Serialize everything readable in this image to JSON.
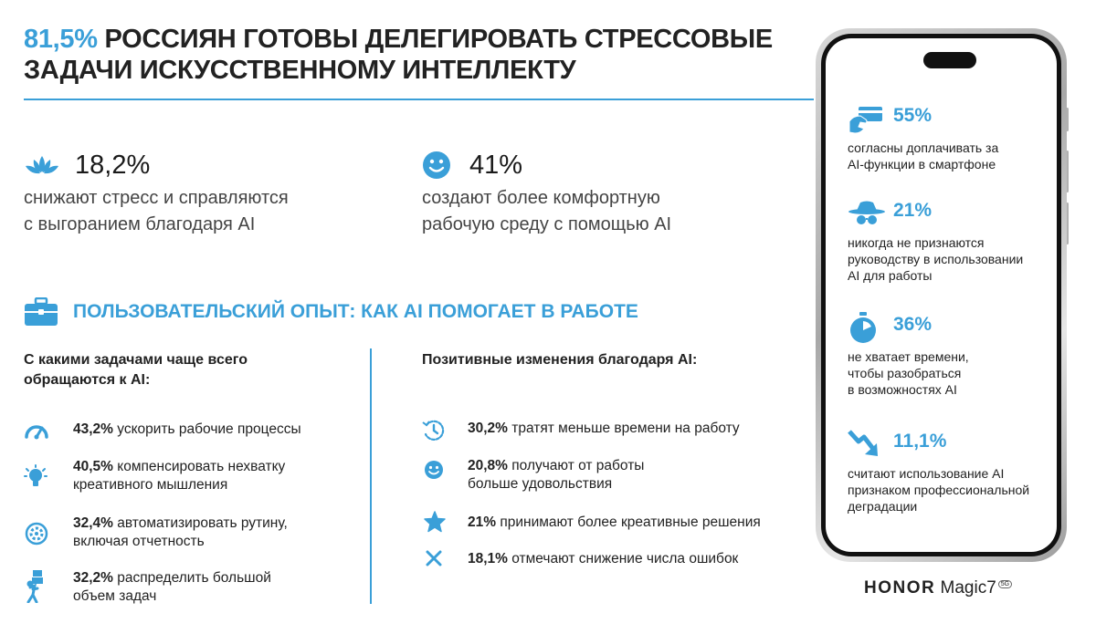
{
  "title": {
    "accent": "81,5%",
    "rest": "РОССИЯН ГОТОВЫ ДЕЛЕГИРОВАТЬ СТРЕССОВЫЕ ЗАДАЧИ ИСКУССТВЕННОМУ ИНТЕЛЛЕКТУ"
  },
  "stats": [
    {
      "icon": "lotus-icon",
      "value": "18,2%",
      "line1": "снижают стресс и справляются",
      "line2": "с выгоранием благодаря AI"
    },
    {
      "icon": "smiley-icon",
      "value": "41%",
      "line1": "создают более комфортную",
      "line2": "рабочую среду с помощью AI"
    }
  ],
  "section": {
    "icon": "briefcase-icon",
    "label": "ПОЛЬЗОВАТЕЛЬСКИЙ ОПЫТ: КАК AI ПОМОГАЕТ В РАБОТЕ"
  },
  "left_column": {
    "title_line1": "С какими задачами чаще всего",
    "title_line2": "обращаются к AI:",
    "items": [
      {
        "icon": "speedometer-icon",
        "pct": "43,2%",
        "line1": "ускорить рабочие процессы",
        "line2": ""
      },
      {
        "icon": "lightbulb-icon",
        "pct": "40,5%",
        "line1": "компенсировать нехватку",
        "line2": "креативного мышления"
      },
      {
        "icon": "gear-icon",
        "pct": "32,4%",
        "line1": "автоматизировать рутину,",
        "line2": "включая отчетность"
      },
      {
        "icon": "carrying-boxes-icon",
        "pct": "32,2%",
        "line1": "распределить большой",
        "line2": "объем задач"
      }
    ]
  },
  "right_column": {
    "title": "Позитивные изменения благодаря AI:",
    "items": [
      {
        "icon": "clock-rewind-icon",
        "pct": "30,2%",
        "line1": "тратят меньше времени на работу",
        "line2": ""
      },
      {
        "icon": "smiley-small-icon",
        "pct": "20,8%",
        "line1": "получают от работы",
        "line2": "больше удовольствия"
      },
      {
        "icon": "star-icon",
        "pct": "21%",
        "line1": "принимают более креативные решения",
        "line2": ""
      },
      {
        "icon": "cross-icon",
        "pct": "18,1%",
        "line1": "отмечают снижение числа ошибок",
        "line2": ""
      }
    ]
  },
  "phone_stats": [
    {
      "icon": "hand-card-icon",
      "value": "55%",
      "l1": "согласны доплачивать за",
      "l2": "AI-функции в смартфоне",
      "l3": ""
    },
    {
      "icon": "spy-hat-icon",
      "value": "21%",
      "l1": "никогда не признаются",
      "l2": "руководству в использовании",
      "l3": "AI для работы"
    },
    {
      "icon": "stopwatch-icon",
      "value": "36%",
      "l1": "не хватает времени,",
      "l2": "чтобы разобраться",
      "l3": "в возможностях AI"
    },
    {
      "icon": "trend-down-icon",
      "value": "11,1%",
      "l1": "считают использование AI",
      "l2": "признаком профессиональной",
      "l3": "деградации"
    }
  ],
  "brand": {
    "name": "HONOR",
    "model": "Magic7",
    "badge": "5G"
  },
  "colors": {
    "accent": "#3a9fd8",
    "text": "#222222"
  }
}
